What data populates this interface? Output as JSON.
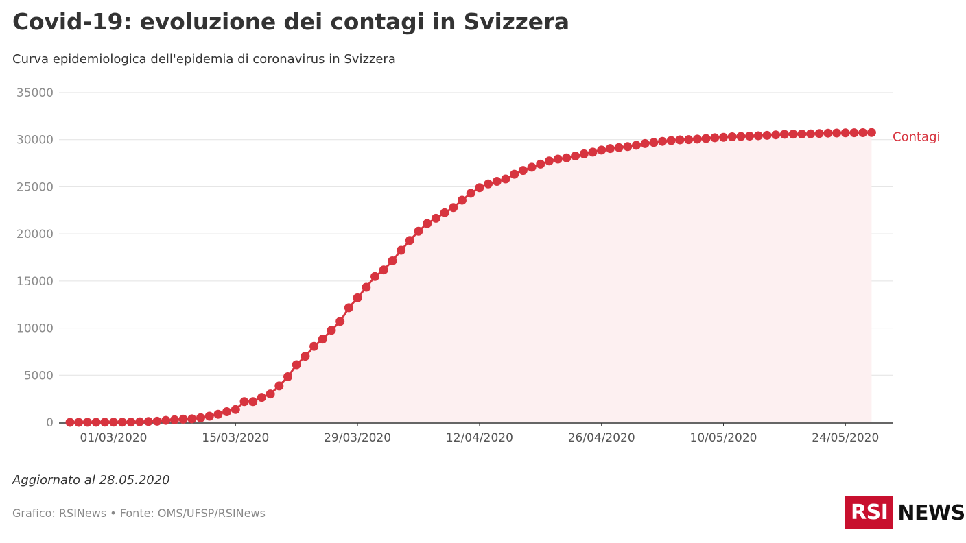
{
  "header": {
    "title": "Covid-19: evoluzione dei contagi in Svizzera",
    "subtitle": "Curva epidemiologica dell'epidemia di coronavirus in Svizzera"
  },
  "footer": {
    "updated": "Aggiornato al 28.05.2020",
    "source": "Grafico: RSINews • Fonte: OMS/UFSP/RSINews",
    "logo_box": "RSI",
    "logo_text": "NEWS"
  },
  "colors": {
    "series": "#d7343f",
    "area_fill": "#fdf0f1",
    "grid": "#e2e2e2",
    "axis": "#333333"
  },
  "chart_data": {
    "type": "line",
    "markers": true,
    "area_fill": true,
    "grid": true,
    "legend": "inline-right",
    "xlabel": "",
    "ylabel": "",
    "ylim": [
      0,
      35000
    ],
    "yticks": [
      0,
      5000,
      10000,
      15000,
      20000,
      25000,
      30000,
      35000
    ],
    "yticks_labels": [
      "0",
      "5000",
      "10000",
      "15000",
      "20000",
      "25000",
      "30000",
      "35000"
    ],
    "x_start": "25/02/2020",
    "x_end": "27/05/2020",
    "xticks": [
      "01/03/2020",
      "15/03/2020",
      "29/03/2020",
      "12/04/2020",
      "26/04/2020",
      "10/05/2020",
      "24/05/2020"
    ],
    "series": [
      {
        "name": "Contagi",
        "values": [
          1,
          1,
          8,
          8,
          15,
          18,
          24,
          30,
          56,
          87,
          120,
          214,
          268,
          337,
          374,
          491,
          652,
          858,
          1125,
          1359,
          2200,
          2200,
          2650,
          3010,
          3863,
          4840,
          6113,
          7014,
          8060,
          8836,
          9765,
          10714,
          12161,
          13213,
          14336,
          15475,
          16176,
          17139,
          18267,
          19303,
          20278,
          21100,
          21652,
          22242,
          22789,
          23574,
          24308,
          24900,
          25300,
          25580,
          25834,
          26336,
          26732,
          27078,
          27404,
          27740,
          27944,
          28063,
          28268,
          28496,
          28677,
          28894,
          29061,
          29164,
          29264,
          29407,
          29586,
          29705,
          29817,
          29905,
          29981,
          30009,
          30060,
          30126,
          30207,
          30251,
          30305,
          30344,
          30380,
          30413,
          30463,
          30514,
          30572,
          30587,
          30597,
          30618,
          30658,
          30694,
          30707,
          30725,
          30736,
          30746,
          30761
        ]
      }
    ]
  }
}
